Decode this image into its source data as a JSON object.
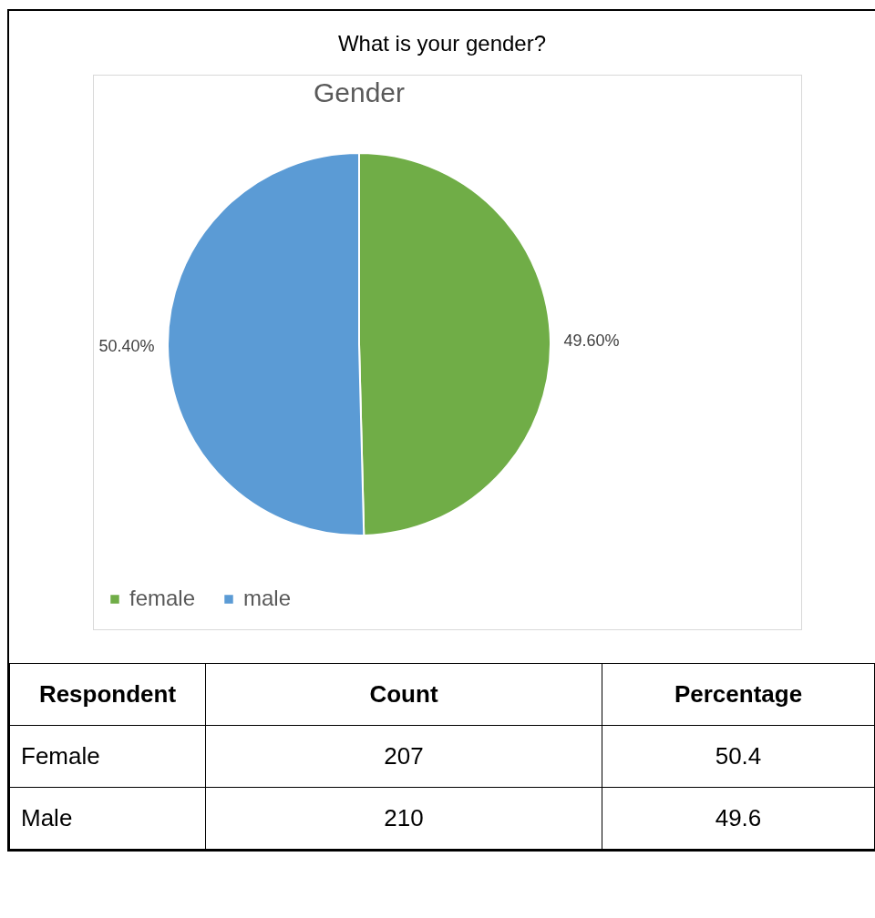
{
  "chart_data": {
    "type": "pie",
    "title": "What is your gender?",
    "subtitle": "Gender",
    "categories": [
      "female",
      "male"
    ],
    "values": [
      49.6,
      50.4
    ],
    "colors": [
      "#70ad47",
      "#5b9bd5"
    ],
    "value_labels": [
      "49.60%",
      "50.40%"
    ],
    "legend": "bottom",
    "annotations": [
      "Respondent",
      "Count",
      "Percentage",
      "Female",
      "207",
      "50.4",
      "Male",
      "210",
      "49.6"
    ]
  }
}
